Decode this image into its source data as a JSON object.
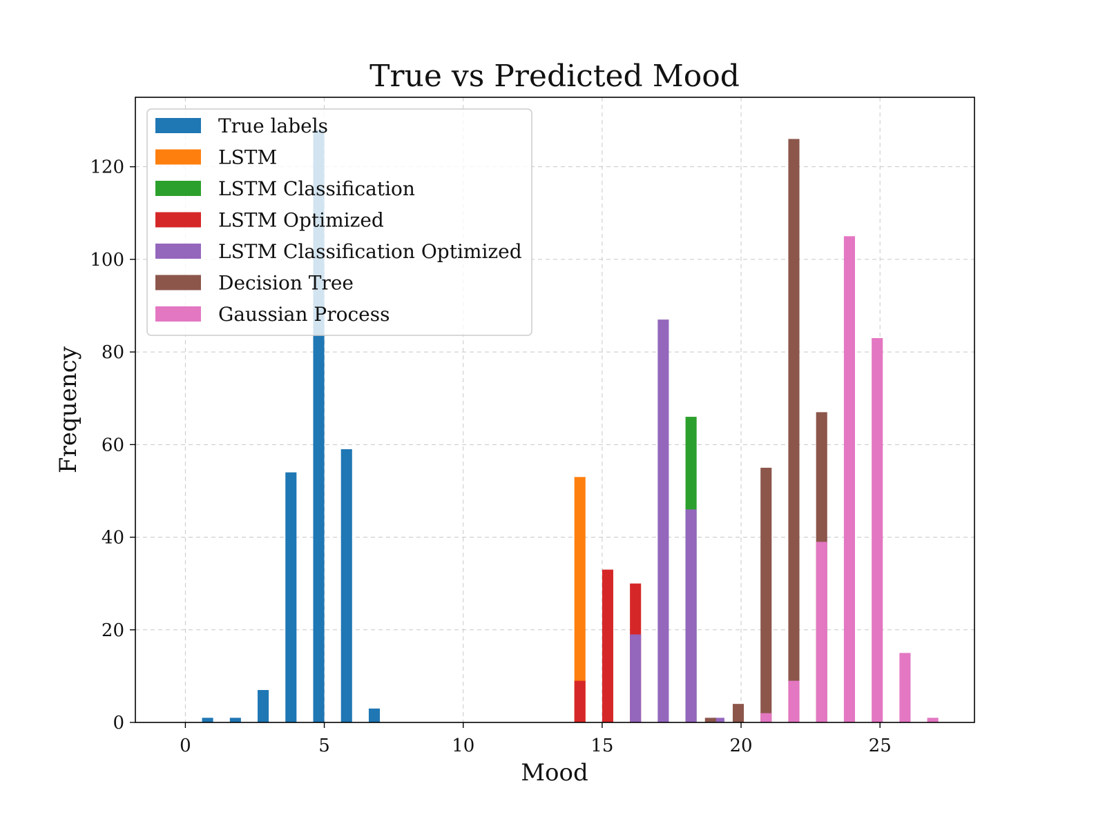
{
  "chart_data": {
    "type": "bar",
    "title": "True vs Predicted Mood",
    "xlabel": "Mood",
    "ylabel": "Frequency",
    "xlim": [
      -1.8,
      28.4
    ],
    "ylim": [
      0,
      135
    ],
    "xticks": [
      0,
      5,
      10,
      15,
      20,
      25
    ],
    "yticks": [
      0,
      20,
      40,
      60,
      80,
      100,
      120
    ],
    "grid": true,
    "legend_position": "top-left",
    "bar_width_data": 0.4,
    "series": [
      {
        "name": "True labels",
        "color": "#1f77b4",
        "points": [
          {
            "x": 0.8,
            "y": 1
          },
          {
            "x": 1.8,
            "y": 1
          },
          {
            "x": 2.8,
            "y": 7
          },
          {
            "x": 3.8,
            "y": 54
          },
          {
            "x": 4.8,
            "y": 128
          },
          {
            "x": 5.8,
            "y": 59
          },
          {
            "x": 6.8,
            "y": 3
          }
        ]
      },
      {
        "name": "LSTM",
        "color": "#ff7f0e",
        "points": [
          {
            "x": 14.2,
            "y": 53
          }
        ]
      },
      {
        "name": "LSTM Classification",
        "color": "#2ca02c",
        "points": [
          {
            "x": 18.2,
            "y": 66
          }
        ]
      },
      {
        "name": "LSTM Optimized",
        "color": "#d62728",
        "points": [
          {
            "x": 14.2,
            "y": 9
          },
          {
            "x": 15.2,
            "y": 33
          },
          {
            "x": 16.2,
            "y": 30
          }
        ]
      },
      {
        "name": "LSTM Classification Optimized",
        "color": "#9467bd",
        "points": [
          {
            "x": 16.2,
            "y": 19
          },
          {
            "x": 17.2,
            "y": 87
          },
          {
            "x": 18.2,
            "y": 46
          },
          {
            "x": 19.2,
            "y": 1
          }
        ]
      },
      {
        "name": "Decision Tree",
        "color": "#8c564b",
        "points": [
          {
            "x": 18.9,
            "y": 1
          },
          {
            "x": 19.9,
            "y": 4
          },
          {
            "x": 20.9,
            "y": 55
          },
          {
            "x": 21.9,
            "y": 126
          },
          {
            "x": 22.9,
            "y": 67
          }
        ]
      },
      {
        "name": "Gaussian Process",
        "color": "#e377c2",
        "points": [
          {
            "x": 20.9,
            "y": 2
          },
          {
            "x": 21.9,
            "y": 9
          },
          {
            "x": 22.9,
            "y": 39
          },
          {
            "x": 23.9,
            "y": 105
          },
          {
            "x": 24.9,
            "y": 83
          },
          {
            "x": 25.9,
            "y": 15
          },
          {
            "x": 26.9,
            "y": 1
          }
        ]
      }
    ]
  }
}
